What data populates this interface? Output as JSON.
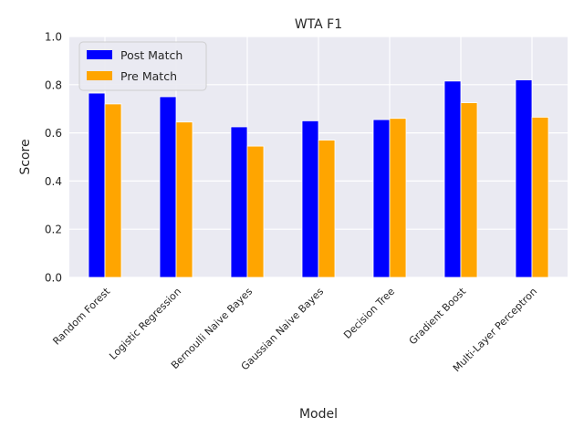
{
  "chart_data": {
    "type": "bar",
    "title": "WTA F1",
    "xlabel": "Model",
    "ylabel": "Score",
    "ylim": [
      0,
      1.0
    ],
    "yticks": [
      "0.0",
      "0.2",
      "0.4",
      "0.6",
      "0.8",
      "1.0"
    ],
    "grid": true,
    "legend_position": "top-left",
    "categories": [
      "Random Forest",
      "Logistic Regression",
      "Bernoulli Naive Bayes",
      "Gaussian Naive Bayes",
      "Decision Tree",
      "Gradient Boost",
      "Multi-Layer Perceptron"
    ],
    "series": [
      {
        "name": "Post Match",
        "color": "#0000ff",
        "values": [
          0.765,
          0.75,
          0.625,
          0.65,
          0.655,
          0.815,
          0.82
        ]
      },
      {
        "name": "Pre Match",
        "color": "#ffa500",
        "values": [
          0.72,
          0.645,
          0.545,
          0.57,
          0.66,
          0.725,
          0.665
        ]
      }
    ]
  }
}
